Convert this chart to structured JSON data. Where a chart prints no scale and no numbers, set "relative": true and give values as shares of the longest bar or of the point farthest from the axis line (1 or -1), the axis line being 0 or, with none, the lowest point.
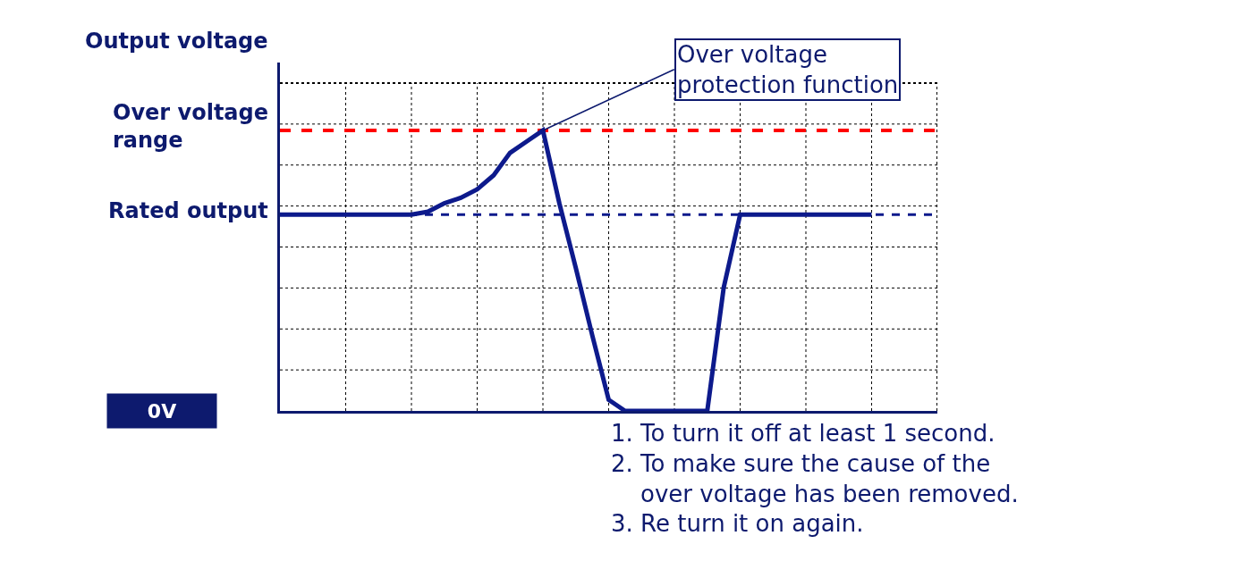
{
  "chart_data": {
    "type": "line",
    "relative": true,
    "ylabel": "Output voltage",
    "categories": [
      null,
      null,
      null,
      null,
      null,
      null,
      null,
      null,
      null,
      null,
      null,
      null,
      null,
      null,
      null,
      null,
      null,
      null,
      null,
      null,
      null,
      null,
      null,
      null,
      null,
      null,
      null,
      null,
      null,
      null,
      null,
      null,
      null,
      null,
      null,
      null,
      null,
      null,
      null,
      null,
      null
    ],
    "series": [
      {
        "color": "#0d1a8c",
        "values": [
          0.7,
          0.7,
          0.7,
          0.7,
          0.7,
          0.7,
          0.7,
          0.7,
          0.7,
          0.71,
          0.74,
          0.76,
          0.79,
          0.84,
          0.92,
          0.96,
          1.0,
          0.74,
          0.51,
          0.27,
          0.04,
          0,
          0,
          0,
          0,
          0,
          0,
          0.44,
          0.7,
          0.7,
          0.7,
          0.7,
          0.7,
          0.7,
          0.7,
          0.7,
          0.7,
          null,
          null,
          null,
          null
        ]
      }
    ],
    "ref_lines": [
      {
        "axis": "y",
        "value": 1.0,
        "label": "Over voltage\nrange",
        "color": "#ff0000",
        "line_style": "dashed"
      },
      {
        "axis": "y",
        "value": 0.7,
        "label": "Rated output",
        "color": "#0d1a8c",
        "line_style": "dashed"
      }
    ],
    "annotations": [
      {
        "text": "Over voltage\nprotection function",
        "y": 1.0
      },
      "0V",
      "1. To turn it off at least 1 second.\n2. To make sure the cause of the\n    over voltage has been removed.\n3. Re turn it on again."
    ],
    "grid": true,
    "legend": false,
    "marker": "none",
    "line_style": "solid"
  }
}
